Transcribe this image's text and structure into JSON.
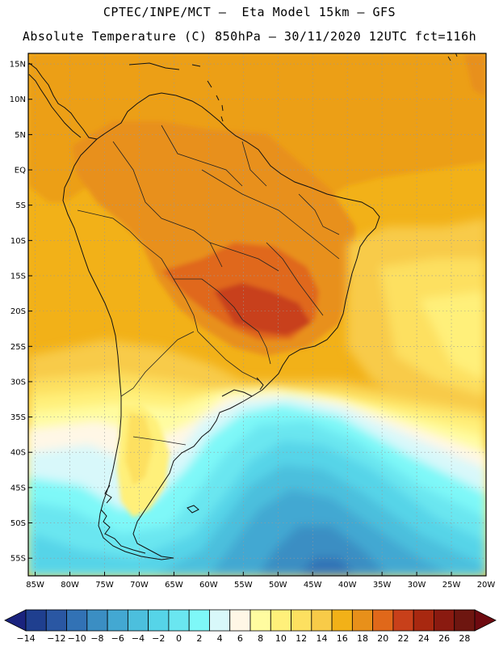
{
  "header": {
    "line1": "CPTEC/INPE/MCT –  Eta Model 15km – GFS",
    "line2": "Absolute Temperature (C) 850hPa – 30/11/2020 12UTC fct=116h"
  },
  "map": {
    "lat_range": [
      -57.5,
      16.5
    ],
    "lon_range": [
      -86,
      -20
    ],
    "lat_ticks": [
      "15N",
      "10N",
      "5N",
      "EQ",
      "5S",
      "10S",
      "15S",
      "20S",
      "25S",
      "30S",
      "35S",
      "40S",
      "45S",
      "50S",
      "55S"
    ],
    "lon_ticks": [
      "85W",
      "80W",
      "75W",
      "70W",
      "65W",
      "60W",
      "55W",
      "50W",
      "45W",
      "40W",
      "35W",
      "30W",
      "25W",
      "20W"
    ],
    "gridlines": "dotted"
  },
  "legend": {
    "labels": [
      "-14",
      "-12",
      "-10",
      "-8",
      "-6",
      "-4",
      "-2",
      "0",
      "2",
      "4",
      "6",
      "8",
      "10",
      "12",
      "14",
      "16",
      "18",
      "20",
      "22",
      "24",
      "26",
      "28"
    ],
    "colors": [
      "#1f3f8f",
      "#2a57a3",
      "#3272b5",
      "#3b8ec3",
      "#43a8d2",
      "#4cbfdd",
      "#56d4e8",
      "#6ae6f0",
      "#7ef8f8",
      "#d8f8fa",
      "#fff7e6",
      "#fffca0",
      "#fff07a",
      "#fde060",
      "#f8cb48",
      "#f2b118",
      "#e8901a",
      "#e0681a",
      "#c8401a",
      "#a82810",
      "#8a1a10",
      "#6e1610"
    ],
    "under_color": "#1a237e",
    "over_color": "#6e0a10"
  }
}
